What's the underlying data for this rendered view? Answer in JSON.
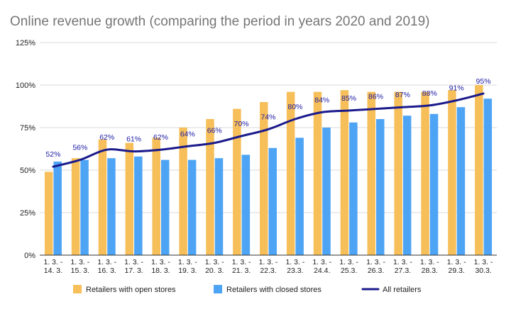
{
  "chart_data": {
    "type": "bar",
    "title": "Online revenue growth (comparing the period in years 2020 and 2019)",
    "categories": [
      [
        "1. 3. -",
        "14. 3."
      ],
      [
        "1. 3. -",
        "15. 3."
      ],
      [
        "1. 3. -",
        "16. 3."
      ],
      [
        "1. 3. -",
        "17. 3."
      ],
      [
        "1. 3. -",
        "18. 3."
      ],
      [
        "1. 3. -",
        "19. 3."
      ],
      [
        "1. 3. -",
        "20. 3."
      ],
      [
        "1. 3. -",
        "21. 3."
      ],
      [
        "1. 3. -",
        "22.3."
      ],
      [
        "1. 3. -",
        "23.3."
      ],
      [
        "1. 3. -",
        "24.4."
      ],
      [
        "1. 3. -",
        "25.3."
      ],
      [
        "1. 3. -",
        "26.3."
      ],
      [
        "1. 3. -",
        "27.3."
      ],
      [
        "1. 3. -",
        "28.3."
      ],
      [
        "1. 3. -",
        "29.3."
      ],
      [
        "1. 3. -",
        "30.3."
      ]
    ],
    "series": [
      {
        "name": "Retailers with open stores",
        "kind": "bar",
        "color": "#F6BF5A",
        "values": [
          49,
          57,
          68,
          66,
          69,
          75,
          80,
          86,
          90,
          96,
          96,
          97,
          96,
          96,
          96,
          97,
          100
        ]
      },
      {
        "name": "Retailers with closed stores",
        "kind": "bar",
        "color": "#4EA4F4",
        "values": [
          55,
          56,
          57,
          58,
          56,
          56,
          57,
          59,
          63,
          69,
          75,
          78,
          80,
          82,
          83,
          87,
          92
        ]
      },
      {
        "name": "All retailers",
        "kind": "line",
        "color": "#1a1a8c",
        "values": [
          52,
          56,
          62,
          61,
          62,
          64,
          66,
          70,
          74,
          80,
          84,
          85,
          86,
          87,
          88,
          91,
          95
        ],
        "labels": [
          "52%",
          "56%",
          "62%",
          "61%",
          "62%",
          "64%",
          "66%",
          "70%",
          "74%",
          "80%",
          "84%",
          "85%",
          "86%",
          "87%",
          "88%",
          "91%",
          "95%"
        ]
      }
    ],
    "ylim": [
      0,
      125
    ],
    "yticks": [
      0,
      25,
      50,
      75,
      100,
      125
    ],
    "ytick_labels": [
      "0%",
      "25%",
      "50%",
      "75%",
      "100%",
      "125%"
    ],
    "grid": true,
    "legend": "bottom"
  }
}
